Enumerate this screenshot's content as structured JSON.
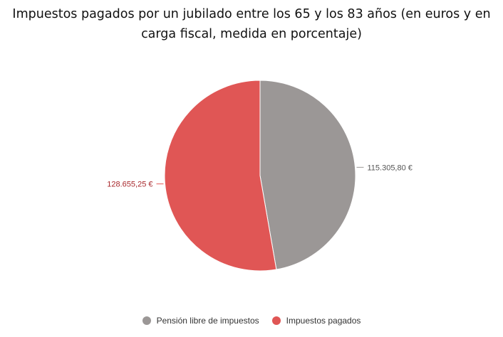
{
  "chart_data": {
    "type": "pie",
    "title_lines": [
      "Impuestos pagados por un jubilado entre los 65 y los 83 años (en euros y en",
      "carga fiscal, medida en porcentaje)"
    ],
    "series": [
      {
        "name": "Pensión libre de impuestos",
        "value": 115305.8,
        "label": "115.305,80 €",
        "color": "#9b9796",
        "label_color": "#555555"
      },
      {
        "name": "Impuestos pagados",
        "value": 128655.25,
        "label": "128.655,25 €",
        "color": "#e05655",
        "label_color": "#a8282c"
      }
    ],
    "start_angle_deg": 0,
    "direction": "clockwise",
    "legend_position": "bottom-center"
  }
}
